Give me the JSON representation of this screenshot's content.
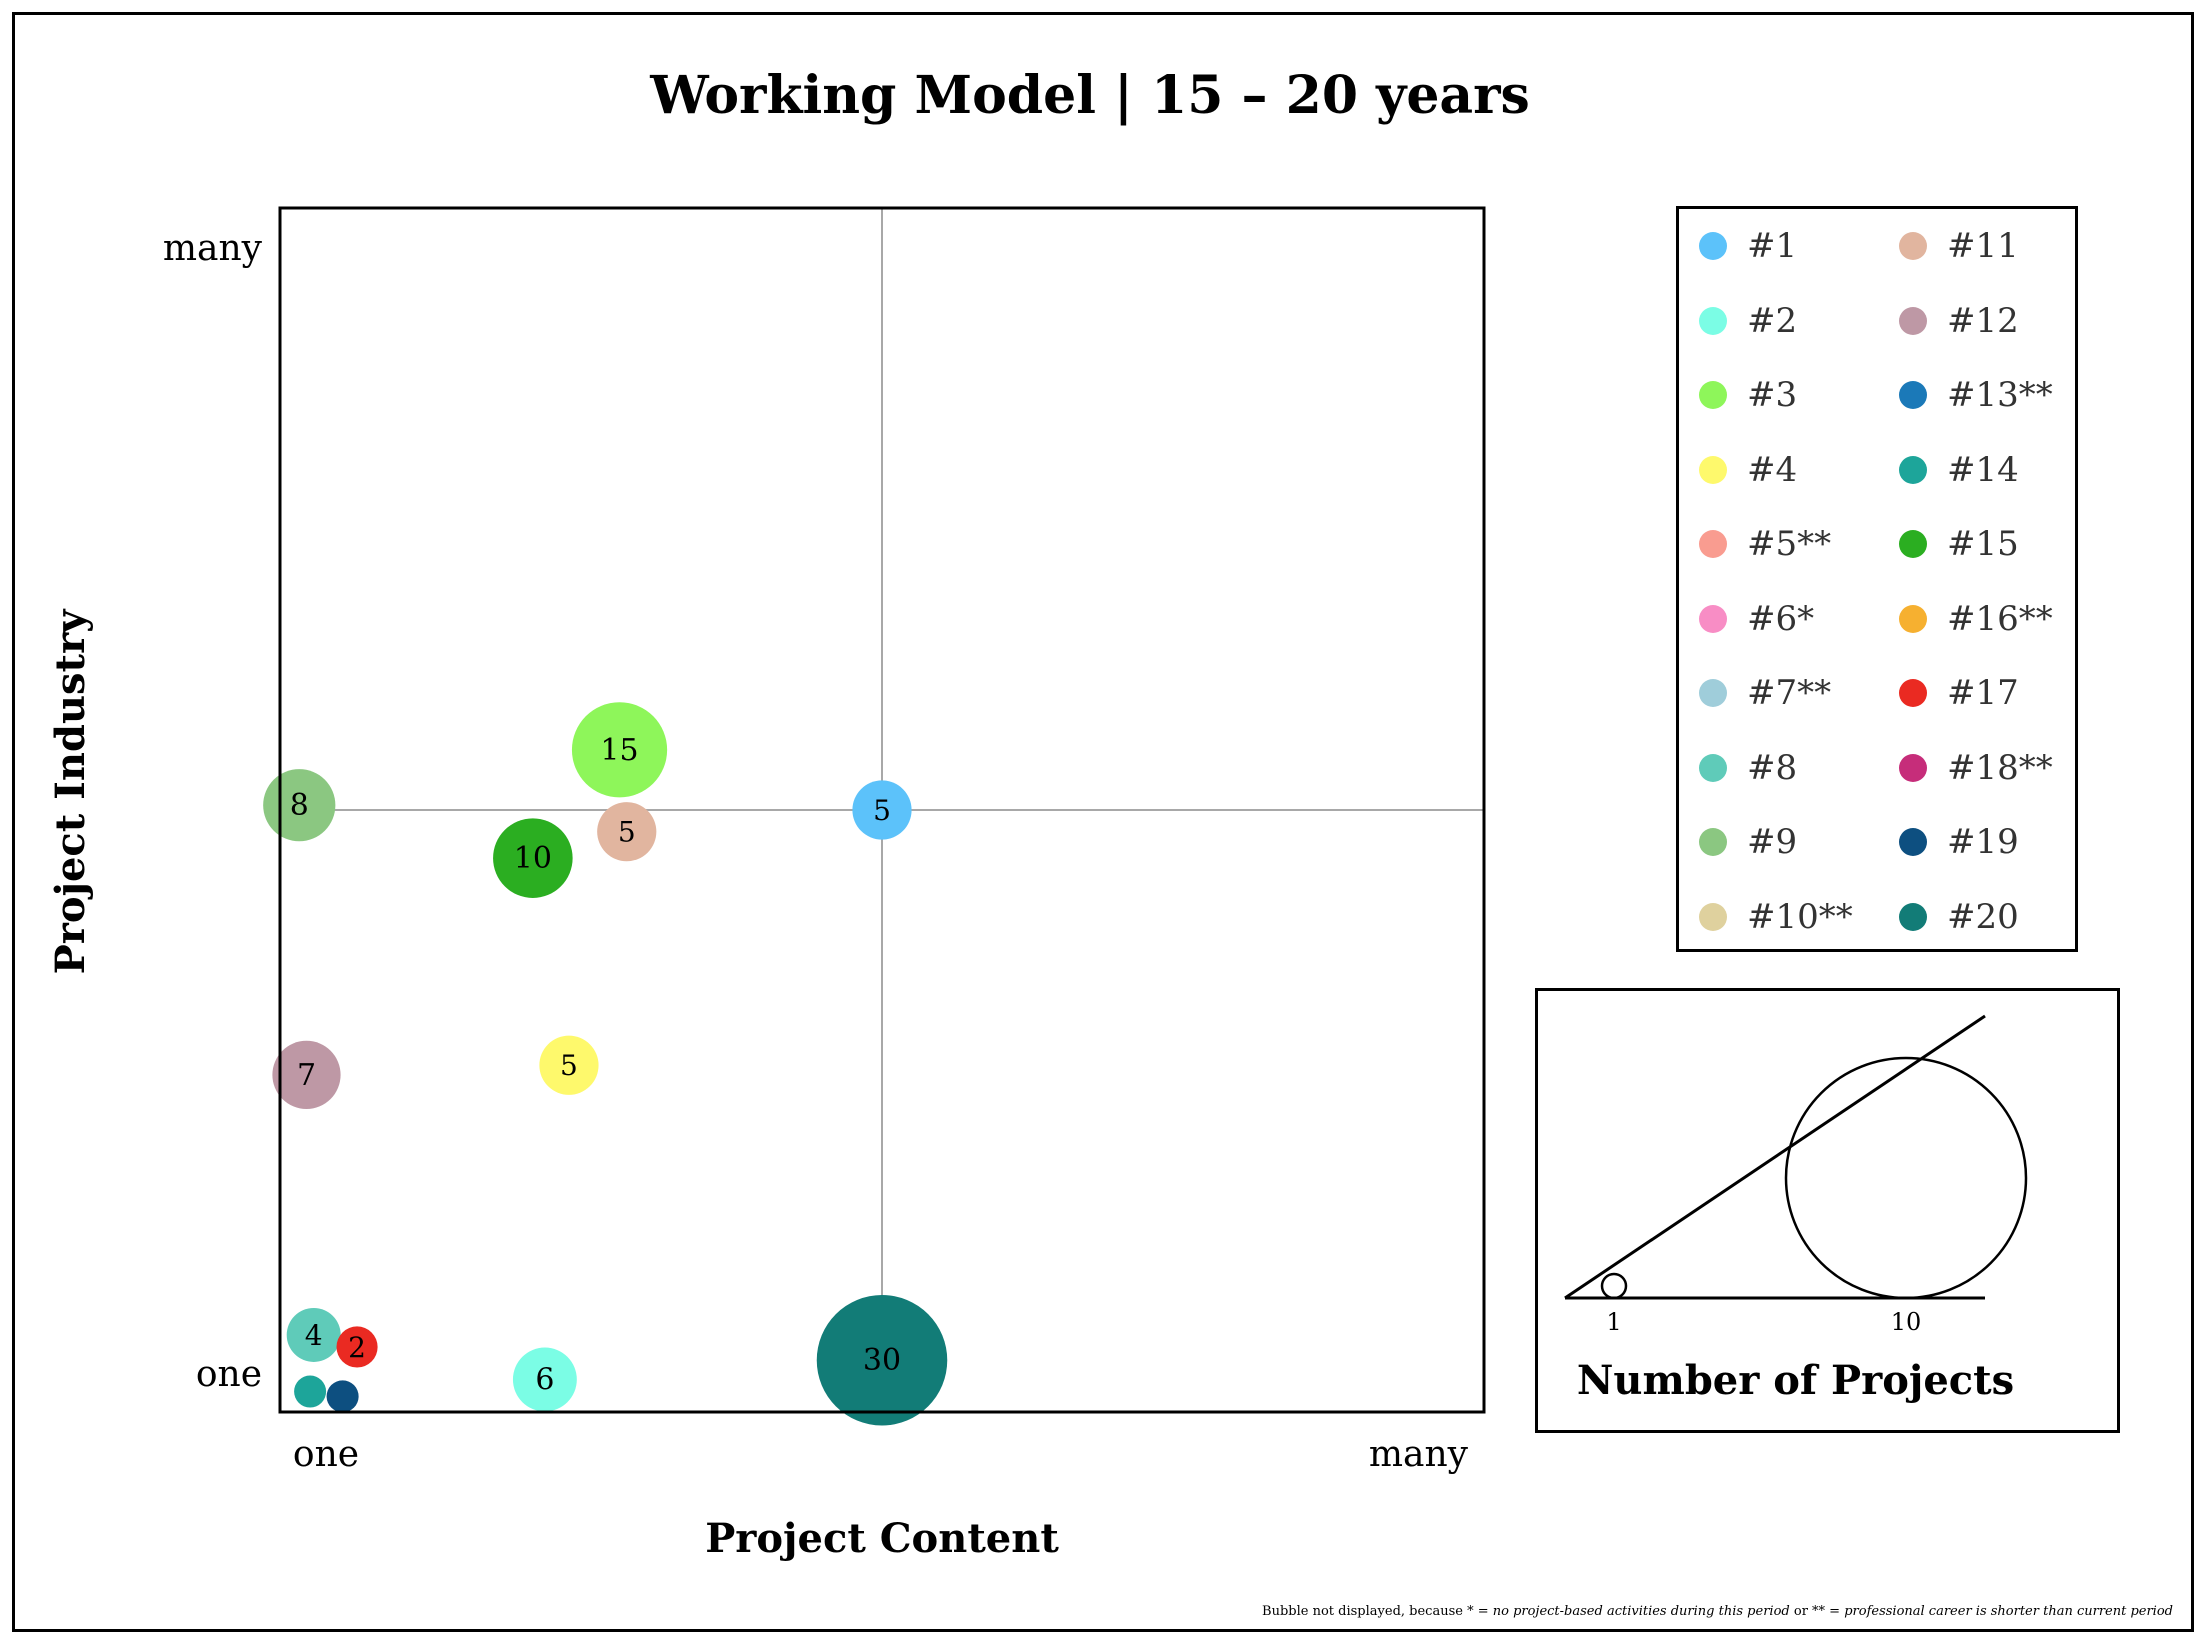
{
  "title": "Working Model | 15 – 20 years",
  "footnote": {
    "prefix": "Bubble not displayed, because * = ",
    "reason1": "no project-based activities during this period",
    "middle": " or ** = ",
    "reason2": "professional career is shorter than current period"
  },
  "chart_data": {
    "type": "scatter",
    "title": "Working Model | 15 – 20 years",
    "xlabel": "Project Content",
    "ylabel": "Project Industry",
    "x_ticks": [
      "one",
      "many"
    ],
    "y_ticks": [
      "one",
      "many"
    ],
    "xlim": [
      0,
      100
    ],
    "ylim": [
      0,
      100
    ],
    "gridlines": "center cross at (50, 50)",
    "size_meaning": "Number of Projects",
    "series": [
      {
        "name": "#1",
        "color": "#5cc2fa",
        "x": 50,
        "y": 50,
        "size": 5,
        "label": "5"
      },
      {
        "name": "#2",
        "color": "#7bfde5",
        "x": 22,
        "y": 2.7,
        "size": 6,
        "label": "6"
      },
      {
        "name": "#3",
        "color": "#8ef65a",
        "x": 28.2,
        "y": 55,
        "size": 15,
        "label": "15"
      },
      {
        "name": "#4",
        "color": "#fef96c",
        "x": 24,
        "y": 28.8,
        "size": 5,
        "label": "5"
      },
      {
        "name": "#5**",
        "color": "#f99c90",
        "x": null,
        "y": null,
        "size": null,
        "label": ""
      },
      {
        "name": "#6*",
        "color": "#f88dc5",
        "x": null,
        "y": null,
        "size": null,
        "label": ""
      },
      {
        "name": "#7**",
        "color": "#9fcdda",
        "x": null,
        "y": null,
        "size": null,
        "label": ""
      },
      {
        "name": "#8",
        "color": "#5fcbb9",
        "x": 2.8,
        "y": 6.4,
        "size": 4,
        "label": "4"
      },
      {
        "name": "#9",
        "color": "#8bc781",
        "x": 1.6,
        "y": 50.4,
        "size": 8,
        "label": "8"
      },
      {
        "name": "#10**",
        "color": "#dfd19e",
        "x": null,
        "y": null,
        "size": null,
        "label": ""
      },
      {
        "name": "#11",
        "color": "#e1b59f",
        "x": 28.8,
        "y": 48.2,
        "size": 5,
        "label": "5"
      },
      {
        "name": "#12",
        "color": "#be98a5",
        "x": 2.2,
        "y": 28,
        "size": 7,
        "label": "7"
      },
      {
        "name": "#13**",
        "color": "#1b79b8",
        "x": null,
        "y": null,
        "size": null,
        "label": ""
      },
      {
        "name": "#14",
        "color": "#1da59a",
        "x": 2.5,
        "y": 1.7,
        "size": 1,
        "label": ""
      },
      {
        "name": "#15",
        "color": "#2bae21",
        "x": 21,
        "y": 46,
        "size": 10,
        "label": "10"
      },
      {
        "name": "#16**",
        "color": "#f6b030",
        "x": null,
        "y": null,
        "size": null,
        "label": ""
      },
      {
        "name": "#17",
        "color": "#ea2a22",
        "x": 6.4,
        "y": 5.4,
        "size": 2,
        "label": "2"
      },
      {
        "name": "#18**",
        "color": "#c62d7a",
        "x": null,
        "y": null,
        "size": null,
        "label": ""
      },
      {
        "name": "#19",
        "color": "#0d4f80",
        "x": 5.2,
        "y": 1.3,
        "size": 1,
        "label": ""
      },
      {
        "name": "#20",
        "color": "#127c77",
        "x": 50,
        "y": 4.3,
        "size": 30,
        "label": "30"
      }
    ]
  },
  "legend": {
    "columns": [
      [
        "#1",
        "#2",
        "#3",
        "#4",
        "#5**",
        "#6*",
        "#7**",
        "#8",
        "#9",
        "#10**"
      ],
      [
        "#11",
        "#12",
        "#13**",
        "#14",
        "#15",
        "#16**",
        "#17",
        "#18**",
        "#19",
        "#20"
      ]
    ]
  },
  "size_legend": {
    "title": "Number of Projects",
    "ticks": [
      {
        "value": 1,
        "label": "1"
      },
      {
        "value": 10,
        "label": "10"
      }
    ]
  }
}
